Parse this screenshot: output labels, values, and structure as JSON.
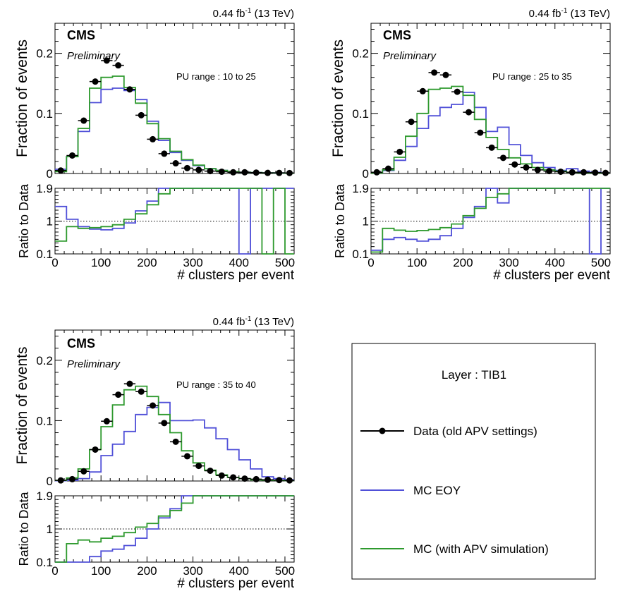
{
  "figure": {
    "experiment": "CMS",
    "status": "Preliminary",
    "lumi": "0.44 fb",
    "lumi_sup": "-1",
    "energy": "(13 TeV)"
  },
  "legend": {
    "title": "Layer : TIB1",
    "entries": [
      {
        "label": "Data (old APV settings)",
        "color": "#000000",
        "style": "marker"
      },
      {
        "label": "MC EOY",
        "color": "#5050d8",
        "style": "line"
      },
      {
        "label": "MC (with APV simulation)",
        "color": "#2e9a2e",
        "style": "line"
      }
    ]
  },
  "chart_data": [
    {
      "type": "line",
      "pu_label": "PU range : 10 to 25",
      "ylabel": "Fraction of events",
      "ratio_ylabel": "Ratio to Data",
      "xlabel": "# clusters per event",
      "xlim": [
        0,
        520
      ],
      "ylim": [
        0,
        0.25
      ],
      "ratio_ylim": [
        0.1,
        1.9
      ],
      "yticks": [
        "0",
        "0.1",
        "0.2"
      ],
      "ratio_yticks": [
        "0.1",
        "1",
        "1.9"
      ],
      "xticks": [
        "0",
        "100",
        "200",
        "300",
        "400",
        "500"
      ],
      "bin_edges": [
        0,
        25,
        50,
        75,
        100,
        125,
        150,
        175,
        200,
        225,
        250,
        275,
        300,
        325,
        350,
        375,
        400,
        425,
        450,
        475,
        500,
        520
      ],
      "data": [
        0.005,
        0.03,
        0.088,
        0.153,
        0.188,
        0.18,
        0.14,
        0.097,
        0.057,
        0.033,
        0.017,
        0.009,
        0.006,
        0.004,
        0.003,
        0.002,
        0.002,
        0.0015,
        0.001,
        0.001,
        0.0008
      ],
      "mc_eoy": [
        0.007,
        0.028,
        0.07,
        0.118,
        0.14,
        0.142,
        0.138,
        0.123,
        0.087,
        0.055,
        0.035,
        0.022,
        0.013,
        0.008,
        0.005,
        0.003,
        0.002,
        0.0015,
        0.001,
        0.0008,
        0.0005
      ],
      "mc_apv": [
        0.003,
        0.028,
        0.075,
        0.142,
        0.16,
        0.162,
        0.143,
        0.117,
        0.083,
        0.058,
        0.037,
        0.023,
        0.014,
        0.008,
        0.005,
        0.003,
        0.002,
        0.0015,
        0.001,
        0.0008,
        0.0005
      ],
      "ratio_eoy": [
        1.4,
        1.05,
        0.85,
        0.78,
        0.76,
        0.8,
        0.95,
        1.28,
        1.55,
        1.9,
        1.9,
        1.9,
        1.9,
        1.9,
        1.9,
        1.9,
        0.1,
        1.9,
        1.9,
        1.9,
        1.9
      ],
      "ratio_apv": [
        0.45,
        0.85,
        0.8,
        0.82,
        0.85,
        0.9,
        1.05,
        1.2,
        1.45,
        1.75,
        1.9,
        1.9,
        1.9,
        1.9,
        1.9,
        1.9,
        1.9,
        1.9,
        0.1,
        1.9,
        0.1
      ]
    },
    {
      "type": "line",
      "pu_label": "PU range : 25 to 35",
      "ylabel": "Fraction of events",
      "ratio_ylabel": "Ratio to Data",
      "xlabel": "# clusters per event",
      "xlim": [
        0,
        520
      ],
      "ylim": [
        0,
        0.25
      ],
      "ratio_ylim": [
        0.1,
        1.9
      ],
      "yticks": [
        "0",
        "0.1",
        "0.2"
      ],
      "ratio_yticks": [
        "0.1",
        "1",
        "1.9"
      ],
      "xticks": [
        "0",
        "100",
        "200",
        "300",
        "400",
        "500"
      ],
      "bin_edges": [
        0,
        25,
        50,
        75,
        100,
        125,
        150,
        175,
        200,
        225,
        250,
        275,
        300,
        325,
        350,
        375,
        400,
        425,
        450,
        475,
        500,
        520
      ],
      "data": [
        0.002,
        0.008,
        0.036,
        0.086,
        0.137,
        0.168,
        0.164,
        0.136,
        0.102,
        0.068,
        0.043,
        0.026,
        0.015,
        0.01,
        0.006,
        0.004,
        0.003,
        0.002,
        0.002,
        0.0015,
        0.001
      ],
      "mc_eoy": [
        0.001,
        0.005,
        0.022,
        0.045,
        0.075,
        0.096,
        0.11,
        0.115,
        0.135,
        0.11,
        0.07,
        0.077,
        0.048,
        0.03,
        0.018,
        0.01,
        0.005,
        0.008,
        0.004,
        0.002,
        0.001
      ],
      "mc_apv": [
        0.001,
        0.006,
        0.027,
        0.062,
        0.1,
        0.14,
        0.142,
        0.145,
        0.13,
        0.09,
        0.06,
        0.04,
        0.026,
        0.016,
        0.01,
        0.006,
        0.004,
        0.002,
        0.0015,
        0.001,
        0.0008
      ],
      "ratio_eoy": [
        0.2,
        0.5,
        0.55,
        0.5,
        0.45,
        0.5,
        0.6,
        0.8,
        1.1,
        1.4,
        1.9,
        1.5,
        1.9,
        1.9,
        1.9,
        1.9,
        1.9,
        1.9,
        1.9,
        0.1,
        1.9
      ],
      "ratio_apv": [
        0.15,
        0.8,
        0.75,
        0.72,
        0.74,
        0.77,
        0.82,
        0.92,
        1.15,
        1.35,
        1.65,
        1.75,
        1.9,
        1.9,
        1.9,
        1.9,
        1.9,
        1.9,
        1.9,
        1.9,
        1.9
      ]
    },
    {
      "type": "line",
      "pu_label": "PU range : 35 to 40",
      "ylabel": "Fraction of events",
      "ratio_ylabel": "Ratio to Data",
      "xlabel": "# clusters per event",
      "xlim": [
        0,
        520
      ],
      "ylim": [
        0,
        0.25
      ],
      "ratio_ylim": [
        0.1,
        1.9
      ],
      "yticks": [
        "0",
        "0.1",
        "0.2"
      ],
      "ratio_yticks": [
        "0.1",
        "1",
        "1.9"
      ],
      "xticks": [
        "0",
        "100",
        "200",
        "300",
        "400",
        "500"
      ],
      "bin_edges": [
        0,
        25,
        50,
        75,
        100,
        125,
        150,
        175,
        200,
        225,
        250,
        275,
        300,
        325,
        350,
        375,
        400,
        425,
        450,
        475,
        500,
        520
      ],
      "data": [
        0.001,
        0.003,
        0.016,
        0.052,
        0.099,
        0.143,
        0.161,
        0.148,
        0.125,
        0.096,
        0.065,
        0.041,
        0.025,
        0.017,
        0.009,
        0.006,
        0.004,
        0.003,
        0.002,
        0.0015,
        0.001
      ],
      "mc_eoy": [
        0.0005,
        0.001,
        0.004,
        0.015,
        0.042,
        0.061,
        0.082,
        0.11,
        0.122,
        0.13,
        0.1,
        0.1,
        0.101,
        0.088,
        0.07,
        0.052,
        0.035,
        0.02,
        0.007,
        0.004,
        0.002
      ],
      "mc_apv": [
        0.001,
        0.005,
        0.02,
        0.052,
        0.09,
        0.126,
        0.151,
        0.157,
        0.14,
        0.11,
        0.08,
        0.05,
        0.03,
        0.018,
        0.01,
        0.006,
        0.004,
        0.002,
        0.0015,
        0.001,
        0.0008
      ],
      "ratio_eoy": [
        0.1,
        0.1,
        0.1,
        0.25,
        0.4,
        0.45,
        0.55,
        0.75,
        1.0,
        1.3,
        1.55,
        1.9,
        1.9,
        1.9,
        1.9,
        1.9,
        1.9,
        1.9,
        1.9,
        1.9,
        1.9
      ],
      "ratio_apv": [
        0.1,
        0.6,
        0.7,
        0.65,
        0.75,
        0.8,
        0.9,
        1.05,
        1.15,
        1.35,
        1.5,
        1.7,
        1.9,
        1.9,
        1.9,
        1.9,
        1.9,
        1.9,
        1.9,
        1.9,
        1.9
      ]
    }
  ]
}
